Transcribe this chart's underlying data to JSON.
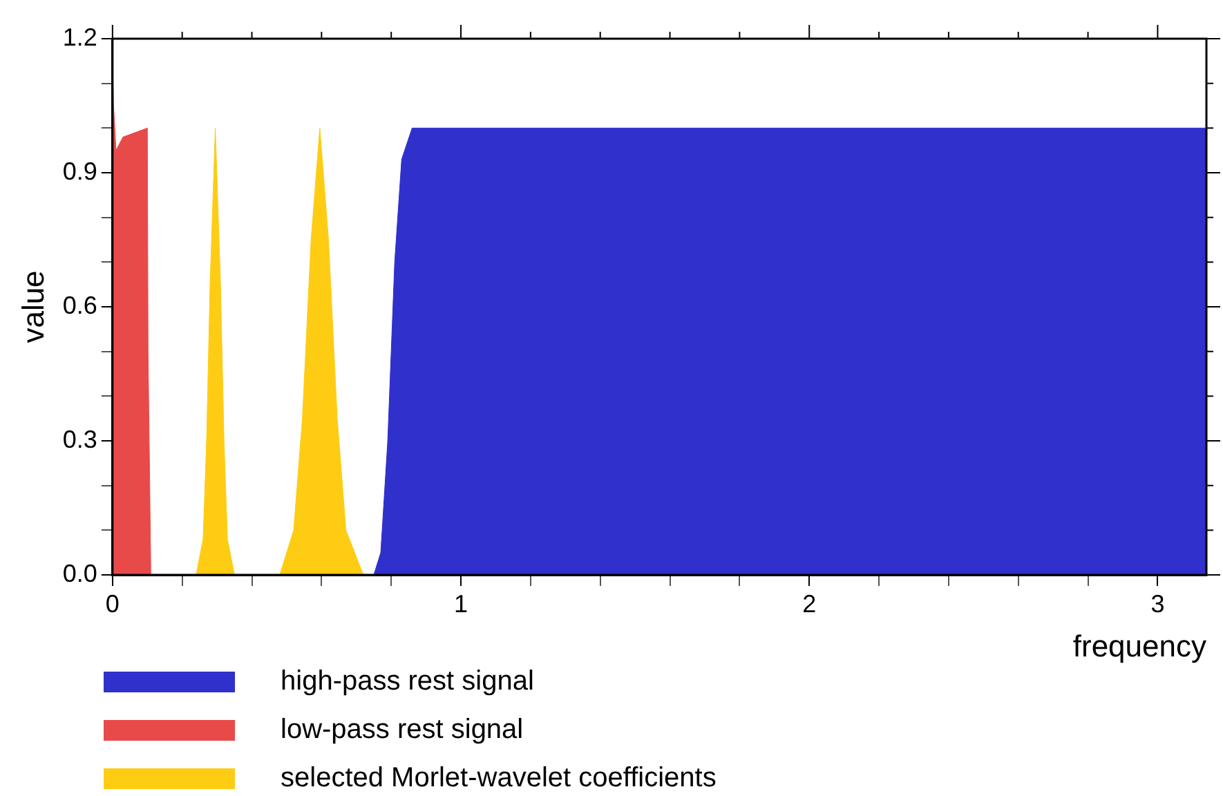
{
  "chart_data": {
    "type": "area",
    "xlabel": "frequency",
    "ylabel": "value",
    "xlim": [
      0,
      3.14
    ],
    "ylim": [
      0,
      1.2
    ],
    "xticks": [
      0,
      {
        "value": 0.2,
        "label": null
      },
      {
        "value": 0.4,
        "label": null
      },
      {
        "value": 0.6,
        "label": null
      },
      {
        "value": 0.8,
        "label": null
      },
      1,
      {
        "value": 1.2,
        "label": null
      },
      {
        "value": 1.4,
        "label": null
      },
      {
        "value": 1.6,
        "label": null
      },
      {
        "value": 1.8,
        "label": null
      },
      2,
      {
        "value": 2.2,
        "label": null
      },
      {
        "value": 2.4,
        "label": null
      },
      {
        "value": 2.6,
        "label": null
      },
      {
        "value": 2.8,
        "label": null
      },
      3
    ],
    "yticks": [
      {
        "value": 0,
        "label": "0.0"
      },
      {
        "value": 0.1,
        "label": null
      },
      {
        "value": 0.2,
        "label": null
      },
      {
        "value": 0.3,
        "label": "0.3"
      },
      {
        "value": 0.4,
        "label": null
      },
      {
        "value": 0.5,
        "label": null
      },
      {
        "value": 0.6,
        "label": "0.6"
      },
      {
        "value": 0.7,
        "label": null
      },
      {
        "value": 0.8,
        "label": null
      },
      {
        "value": 0.9,
        "label": "0.9"
      },
      {
        "value": 1.0,
        "label": null
      },
      {
        "value": 1.1,
        "label": null
      },
      {
        "value": 1.2,
        "label": "1.2"
      }
    ],
    "grid": false,
    "legend": "bottom left",
    "series": [
      {
        "name": "high-pass rest signal",
        "color": "#3030cc",
        "x": [
          0.75,
          0.77,
          0.79,
          0.81,
          0.83,
          0.86,
          3.14
        ],
        "values": [
          0,
          0.05,
          0.3,
          0.7,
          0.93,
          1.0,
          1.0
        ]
      },
      {
        "name": "low-pass rest signal",
        "color": "#e84a4a",
        "x": [
          0,
          0.003,
          0.01,
          0.03,
          0.1,
          0.102,
          0.11
        ],
        "values": [
          1.15,
          1.05,
          0.95,
          0.98,
          1.0,
          0.5,
          0
        ]
      },
      {
        "name": "selected Morlet-wavelet coefficients",
        "color": "#ffcc14",
        "x": [
          0.24,
          0.26,
          0.27,
          0.28,
          0.295,
          0.31,
          0.32,
          0.33,
          0.35,
          0.48,
          0.52,
          0.545,
          0.57,
          0.595,
          0.62,
          0.645,
          0.67,
          0.72
        ],
        "values": [
          0,
          0.08,
          0.3,
          0.65,
          1.0,
          0.65,
          0.3,
          0.08,
          0,
          0,
          0.1,
          0.35,
          0.75,
          1.0,
          0.75,
          0.35,
          0.1,
          0
        ]
      }
    ]
  }
}
